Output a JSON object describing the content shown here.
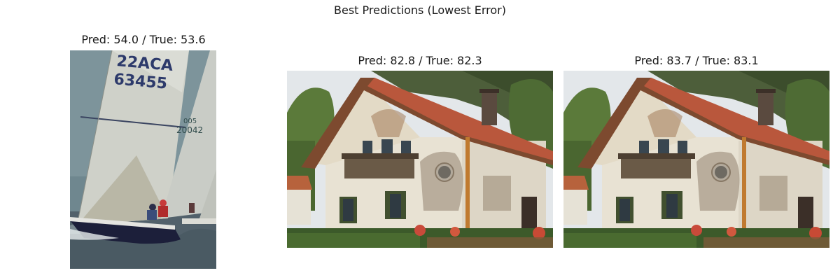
{
  "figure": {
    "suptitle": "Best Predictions (Lowest Error)"
  },
  "panels": [
    {
      "title": "Pred: 54.0 / True: 53.6",
      "sail_text_top": "22ACA",
      "sail_text_number": "63455",
      "sail2_text_top": "005",
      "sail2_text_number": "20042"
    },
    {
      "title": "Pred: 82.8 / True: 82.3"
    },
    {
      "title": "Pred: 83.7 / True: 83.1"
    }
  ],
  "colors": {
    "sky": "#dfe6ea",
    "sea": "#4f6370",
    "sail": "#d4d6d0",
    "house_wall": "#e7e0d2",
    "roof": "#b8583f",
    "foliage": "#3f5a2e"
  }
}
